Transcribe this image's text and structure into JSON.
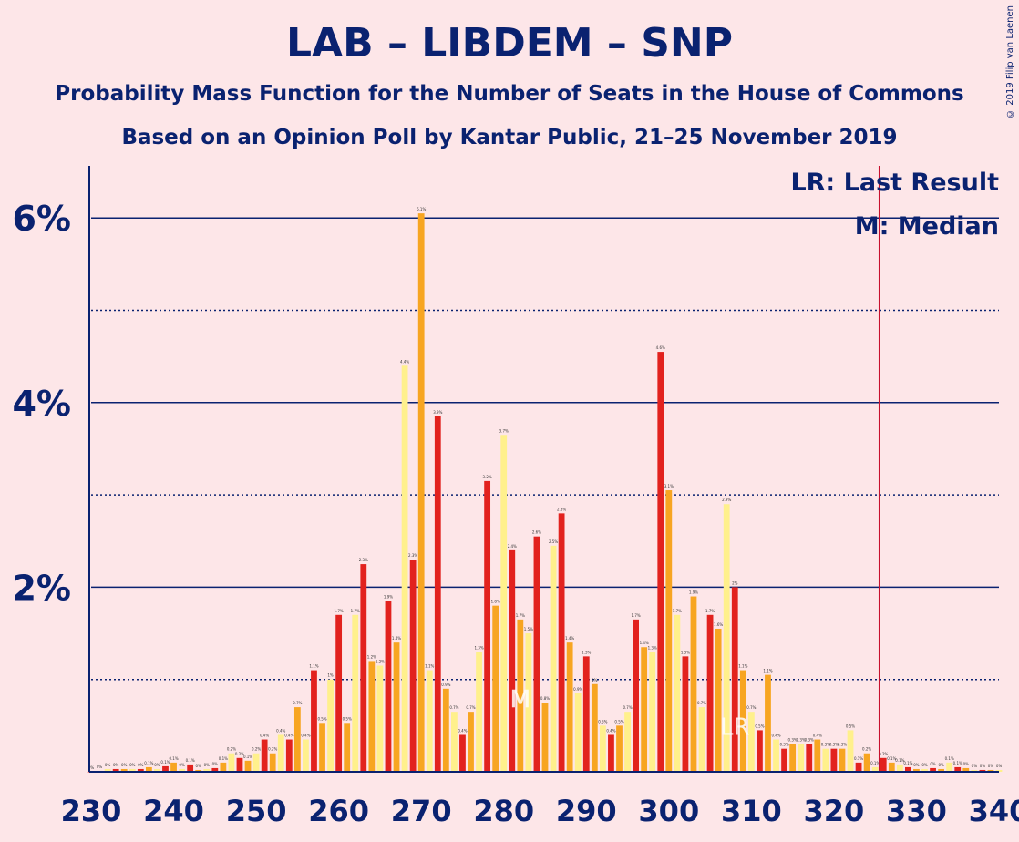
{
  "title": "LAB – LIBDEM – SNP",
  "subtitle1": "Probability Mass Function for the Number of Seats in the House of Commons",
  "subtitle2": "Based on an Opinion Poll by Kantar Public, 21–25 November 2019",
  "copyright": "© 2019 Filip van Laenen",
  "chart_data": {
    "type": "bar",
    "x_start": 230,
    "x_step": 1,
    "values": [
      0.0,
      0.01,
      0.03,
      0.03,
      0.03,
      0.03,
      0.03,
      0.05,
      0.03,
      0.06,
      0.1,
      0.03,
      0.08,
      0.02,
      0.03,
      0.04,
      0.1,
      0.2,
      0.15,
      0.12,
      0.2,
      0.35,
      0.2,
      0.4,
      0.35,
      0.7,
      0.35,
      1.1,
      0.53,
      1.0,
      1.7,
      0.53,
      1.7,
      2.25,
      1.2,
      1.15,
      1.85,
      1.4,
      4.4,
      2.3,
      6.05,
      1.1,
      3.85,
      0.9,
      0.65,
      0.4,
      0.65,
      1.3,
      3.15,
      1.8,
      3.65,
      2.4,
      1.65,
      1.5,
      2.55,
      0.75,
      2.45,
      2.8,
      1.4,
      0.85,
      1.25,
      0.95,
      0.5,
      0.4,
      0.5,
      0.65,
      1.65,
      1.35,
      1.3,
      4.55,
      3.05,
      1.7,
      1.25,
      1.9,
      0.7,
      1.7,
      1.55,
      2.9,
      2.0,
      1.1,
      0.65,
      0.45,
      1.05,
      0.35,
      0.25,
      0.3,
      0.3,
      0.3,
      0.35,
      0.25,
      0.25,
      0.25,
      0.45,
      0.1,
      0.2,
      0.05,
      0.15,
      0.1,
      0.08,
      0.05,
      0.03,
      0.03,
      0.04,
      0.03,
      0.1,
      0.05,
      0.04,
      0.02,
      0.02,
      0.02,
      0.02
    ],
    "colors": {
      "red": "#E2221E",
      "orange": "#F7A521",
      "yellow": "#FFF08C"
    },
    "xlim": [
      230,
      340
    ],
    "ylim": [
      0,
      6.5
    ],
    "x_ticks": [
      230,
      240,
      250,
      260,
      270,
      280,
      290,
      300,
      310,
      320,
      330,
      340
    ],
    "y_ticks_solid": [
      {
        "value": 2,
        "label": "2%"
      },
      {
        "value": 4,
        "label": "4%"
      },
      {
        "value": 6,
        "label": "6%"
      }
    ],
    "y_ticks_dotted": [
      1,
      3,
      5
    ],
    "last_result": 326,
    "median": 282,
    "last_result_marker": "LR",
    "median_marker": "M",
    "legend": [
      {
        "text": "LR: Last Result"
      },
      {
        "text": "M: Median"
      }
    ],
    "legend_position": "top-right"
  }
}
